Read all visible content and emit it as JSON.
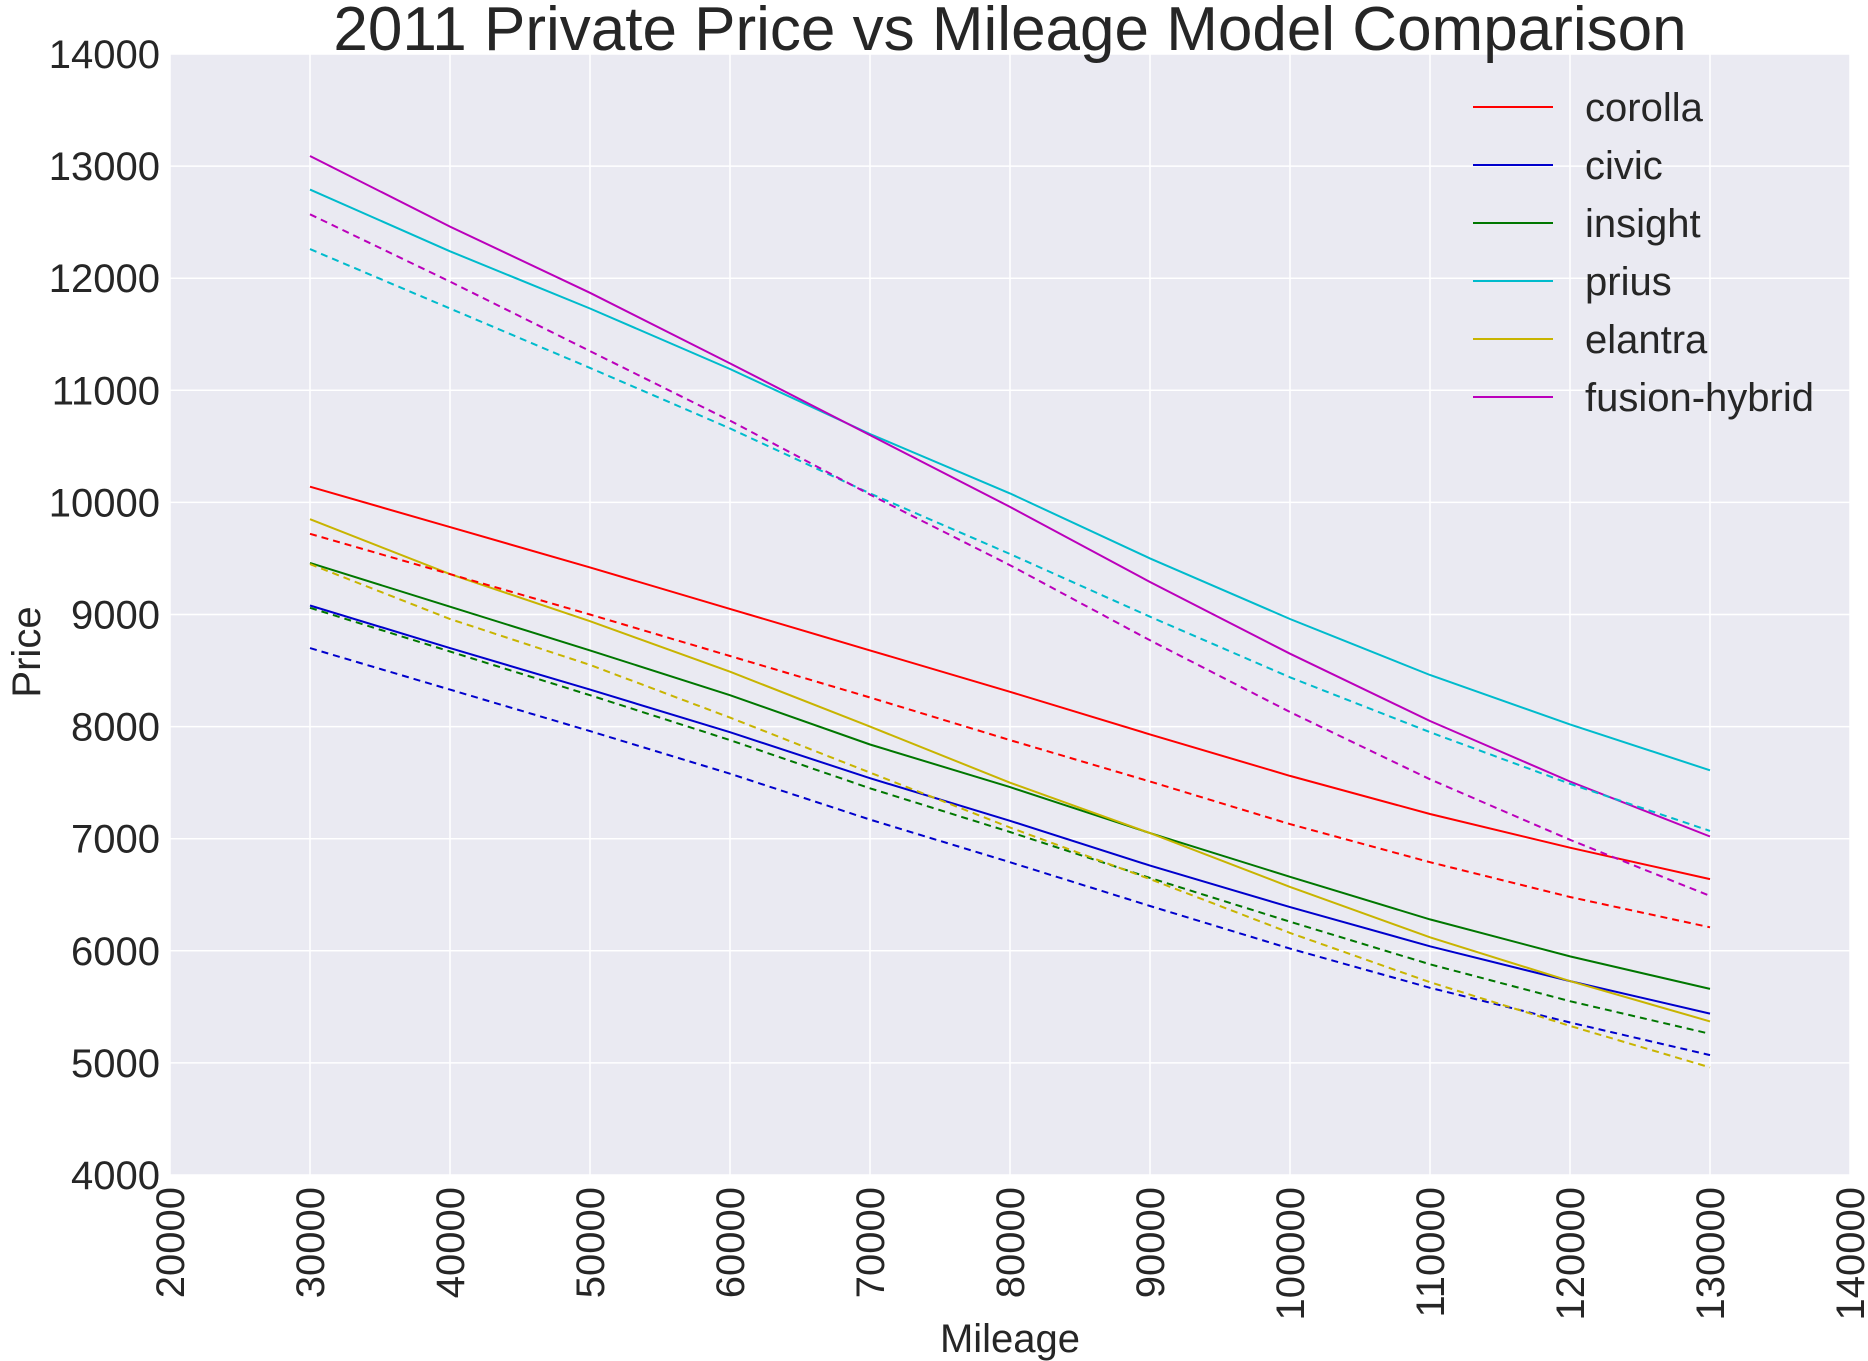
{
  "chart_data": {
    "type": "line",
    "title": "2011 Private Price vs Mileage Model Comparison",
    "xlabel": "Mileage",
    "ylabel": "Price",
    "xlim": [
      20000,
      140000
    ],
    "ylim": [
      4000,
      14000
    ],
    "xticks": [
      20000,
      30000,
      40000,
      50000,
      60000,
      70000,
      80000,
      90000,
      100000,
      110000,
      120000,
      130000,
      140000
    ],
    "yticks": [
      4000,
      5000,
      6000,
      7000,
      8000,
      9000,
      10000,
      11000,
      12000,
      13000,
      14000
    ],
    "grid": true,
    "legend_position": "top-right",
    "x": [
      30000,
      40000,
      50000,
      60000,
      70000,
      80000,
      90000,
      100000,
      110000,
      120000,
      130000
    ],
    "series": [
      {
        "name": "corolla",
        "color": "#ff0000",
        "style": "solid",
        "values": [
          10140,
          9780,
          9420,
          9050,
          8680,
          8310,
          7930,
          7560,
          7220,
          6920,
          6640
        ]
      },
      {
        "name": "civic",
        "color": "#0000cc",
        "style": "solid",
        "values": [
          9080,
          8700,
          8330,
          7950,
          7540,
          7160,
          6760,
          6390,
          6040,
          5730,
          5440
        ]
      },
      {
        "name": "insight",
        "color": "#007700",
        "style": "solid",
        "values": [
          9460,
          9070,
          8680,
          8280,
          7840,
          7460,
          7050,
          6660,
          6280,
          5950,
          5660
        ]
      },
      {
        "name": "prius",
        "color": "#00bbcc",
        "style": "solid",
        "values": [
          12790,
          12240,
          11730,
          11190,
          10610,
          10080,
          9500,
          8960,
          8460,
          8020,
          7610
        ]
      },
      {
        "name": "elantra",
        "color": "#c8b400",
        "style": "solid",
        "values": [
          9850,
          9360,
          8940,
          8490,
          8000,
          7500,
          7050,
          6570,
          6120,
          5730,
          5370
        ]
      },
      {
        "name": "fusion-hybrid",
        "color": "#bb00bb",
        "style": "solid",
        "values": [
          13090,
          12460,
          11870,
          11240,
          10600,
          9960,
          9290,
          8650,
          8050,
          7510,
          7020
        ]
      },
      {
        "color": "#ff0000",
        "style": "dashed",
        "values": [
          9720,
          9360,
          9000,
          8630,
          8260,
          7880,
          7510,
          7130,
          6790,
          6480,
          6210
        ]
      },
      {
        "color": "#0000cc",
        "style": "dashed",
        "values": [
          8700,
          8330,
          7960,
          7580,
          7170,
          6790,
          6400,
          6020,
          5670,
          5360,
          5070
        ]
      },
      {
        "color": "#007700",
        "style": "dashed",
        "values": [
          9060,
          8670,
          8280,
          7880,
          7450,
          7060,
          6650,
          6260,
          5880,
          5550,
          5260
        ]
      },
      {
        "color": "#00bbcc",
        "style": "dashed",
        "values": [
          12260,
          11730,
          11200,
          10660,
          10080,
          9540,
          8980,
          8440,
          7950,
          7490,
          7070
        ]
      },
      {
        "color": "#c8b400",
        "style": "dashed",
        "values": [
          9450,
          8960,
          8550,
          8080,
          7590,
          7100,
          6640,
          6160,
          5720,
          5330,
          4960
        ]
      },
      {
        "color": "#bb00bb",
        "style": "dashed",
        "values": [
          12570,
          11970,
          11350,
          10730,
          10070,
          9440,
          8770,
          8130,
          7530,
          6990,
          6490
        ]
      }
    ]
  }
}
